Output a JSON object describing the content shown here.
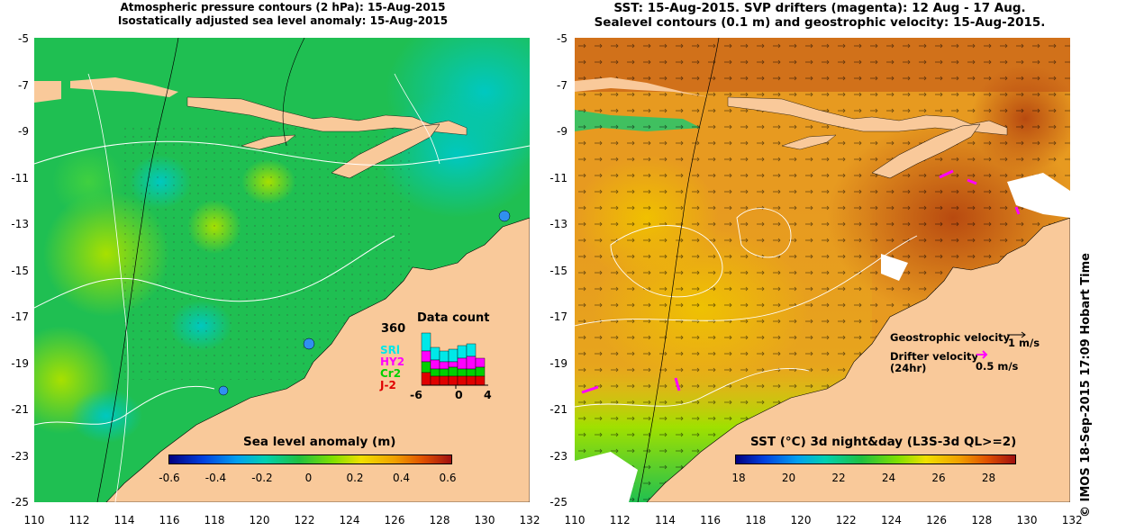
{
  "left": {
    "title_line1": "Atmospheric pressure contours (2 hPa): 15-Aug-2015",
    "title_line2": "Isostatically adjusted sea level anomaly: 15-Aug-2015",
    "colorbar_label": "Sea level anomaly (m)",
    "colorbar_ticks": [
      "-0.6",
      "-0.4",
      "-0.2",
      "0",
      "0.2",
      "0.4",
      "0.6"
    ],
    "inset": {
      "title": "Data count",
      "ymax": "360",
      "xticks": [
        "-6",
        "0",
        "4"
      ],
      "missions": [
        "SRl",
        "HY2",
        "Cr2",
        "J-2"
      ],
      "mission_colors": [
        "#00e8e8",
        "#ff00ff",
        "#00d000",
        "#e00000"
      ]
    }
  },
  "right": {
    "title_line1": "SST: 15-Aug-2015. SVP drifters (magenta): 12 Aug - 17 Aug.",
    "title_line2": "Sealevel contours (0.1 m) and geostrophic velocity: 15-Aug-2015.",
    "colorbar_label": "SST (°C) 3d night&day (L3S-3d QL>=2)",
    "colorbar_ticks": [
      "18",
      "20",
      "22",
      "24",
      "26",
      "28"
    ],
    "legend": {
      "geo_label": "Geostrophic velocity",
      "geo_speed": "1 m/s",
      "drifter_label_line1": "Drifter velocity",
      "drifter_label_line2": "(24hr)",
      "drifter_speed": "0.5 m/s"
    }
  },
  "axes": {
    "y_ticks": [
      "-5",
      "-7",
      "-9",
      "-11",
      "-13",
      "-15",
      "-17",
      "-19",
      "-21",
      "-23",
      "-25"
    ],
    "x_ticks": [
      "110",
      "112",
      "114",
      "116",
      "118",
      "120",
      "122",
      "124",
      "126",
      "128",
      "130",
      "132"
    ]
  },
  "side_note": "© IMOS 18-Sep-2015 17:09 Hobart Time",
  "colors": {
    "land": "#f9c99a",
    "sla_base": "#1fbf52",
    "sst_base": "#e79a20",
    "drifter": "#ff00ff"
  }
}
